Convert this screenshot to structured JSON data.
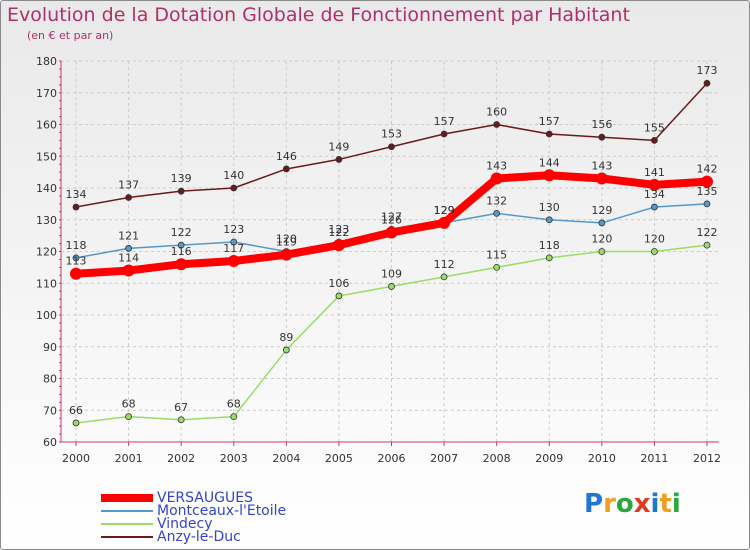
{
  "chart_data": {
    "type": "line",
    "title": "Evolution de la Dotation Globale de Fonctionnement par Habitant",
    "subtitle": "(en € et par an)",
    "xlabel": "",
    "ylabel": "",
    "ylim": [
      60,
      180
    ],
    "yticks": [
      60,
      70,
      80,
      90,
      100,
      110,
      120,
      130,
      140,
      150,
      160,
      170,
      180
    ],
    "categories": [
      "2000",
      "2001",
      "2002",
      "2003",
      "2004",
      "2005",
      "2006",
      "2007",
      "2008",
      "2009",
      "2010",
      "2011",
      "2012"
    ],
    "grid": true,
    "legend_position": "bottom-left",
    "series": [
      {
        "name": "Anzy-le-Duc",
        "color": "#6b1a1a",
        "values": [
          134,
          137,
          139,
          140,
          146,
          149,
          153,
          157,
          160,
          157,
          156,
          155,
          173
        ]
      },
      {
        "name": "Vindecy",
        "color": "#99dd66",
        "values": [
          66,
          68,
          67,
          68,
          89,
          106,
          109,
          112,
          115,
          118,
          120,
          120,
          122
        ]
      },
      {
        "name": "Montceaux-l'Etoile",
        "color": "#5599cc",
        "values": [
          118,
          121,
          122,
          123,
          120,
          123,
          127,
          129,
          132,
          130,
          129,
          134,
          135
        ]
      },
      {
        "name": "VERSAUGUES",
        "color": "#ff0000",
        "values": [
          113,
          114,
          116,
          117,
          119,
          122,
          126,
          129,
          143,
          144,
          143,
          141,
          142
        ]
      }
    ]
  },
  "legend": {
    "items": [
      {
        "label": "VERSAUGUES",
        "color": "#ff0000"
      },
      {
        "label": "Montceaux-l'Etoile",
        "color": "#5599cc"
      },
      {
        "label": "Vindecy",
        "color": "#99dd66"
      },
      {
        "label": "Anzy-le-Duc",
        "color": "#6b1a1a"
      }
    ]
  },
  "logo": {
    "letters": [
      "P",
      "r",
      "o",
      "x",
      "i",
      "t",
      "i"
    ],
    "colors": [
      "#1f77d0",
      "#f0a020",
      "#2aa840",
      "#e03a20",
      "#1f77d0",
      "#f0a020",
      "#2aa840"
    ]
  }
}
